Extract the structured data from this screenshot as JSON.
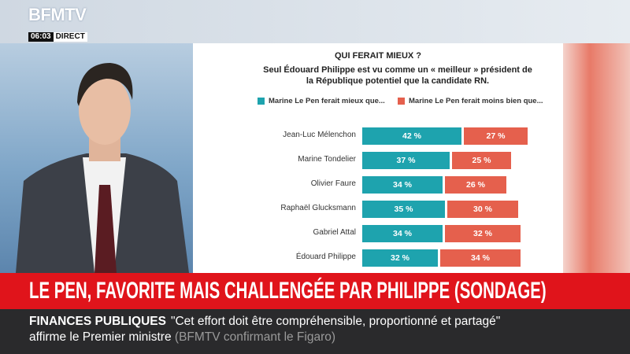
{
  "broadcast": {
    "logo": "BFMTV",
    "time": "06:03",
    "live": "DIRECT",
    "headline": "LE PEN, FAVORITE MAIS CHALLENGÉE PAR PHILIPPE (SONDAGE)",
    "ticker": {
      "topic": "FINANCES PUBLIQUES",
      "text": "\"Cet effort doit être compréhensible, proportionné et partagé\" affirme le Premier ministre",
      "source": "(BFMTV confirmant le Figaro)"
    }
  },
  "chart_data": {
    "type": "stacked-bar",
    "orientation": "horizontal",
    "title": "QUI FERAIT MIEUX ?",
    "subtitle": "Seul Édouard Philippe est vu comme un « meilleur » président de la République potentiel que la candidate RN.",
    "categories": [
      "Jean-Luc Mélenchon",
      "Marine Tondelier",
      "Olivier Faure",
      "Raphaël Glucksmann",
      "Gabriel Attal",
      "Édouard Philippe"
    ],
    "series": [
      {
        "name": "Marine Le Pen ferait mieux que...",
        "color": "#1ea3ae",
        "values": [
          42,
          37,
          34,
          35,
          34,
          32
        ],
        "value_labels": [
          "42 %",
          "37 %",
          "34 %",
          "35 %",
          "34 %",
          "32 %"
        ]
      },
      {
        "name": "Marine Le Pen ferait moins bien que...",
        "color": "#e5604d",
        "values": [
          27,
          25,
          26,
          30,
          32,
          34
        ],
        "value_labels": [
          "27 %",
          "25 %",
          "26 %",
          "30 %",
          "32 %",
          "34 %"
        ]
      }
    ]
  }
}
